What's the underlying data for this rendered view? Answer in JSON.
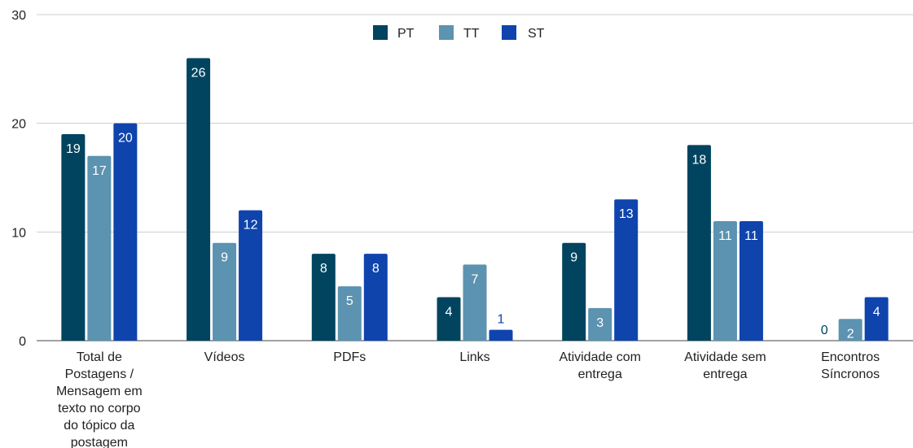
{
  "chart_data": {
    "type": "bar",
    "title": "",
    "xlabel": "",
    "ylabel": "",
    "ylim": [
      0,
      30
    ],
    "yticks": [
      0,
      10,
      20,
      30
    ],
    "grid": true,
    "legend_position": "top-center",
    "categories": [
      [
        "Total de",
        "Postagens /",
        "Mensagem em",
        "texto no corpo",
        "do tópico da",
        "postagem"
      ],
      [
        "Vídeos"
      ],
      [
        "PDFs"
      ],
      [
        "Links"
      ],
      [
        "Atividade com",
        "entrega"
      ],
      [
        "Atividade sem",
        "entrega"
      ],
      [
        "Encontros",
        "Síncronos"
      ]
    ],
    "series": [
      {
        "name": "PT",
        "color": "#00445f",
        "values": [
          19,
          26,
          8,
          4,
          9,
          18,
          0
        ]
      },
      {
        "name": "TT",
        "color": "#5b93b0",
        "values": [
          17,
          9,
          5,
          7,
          3,
          11,
          2
        ]
      },
      {
        "name": "ST",
        "color": "#0f44ad",
        "values": [
          20,
          12,
          8,
          1,
          13,
          11,
          4
        ]
      }
    ]
  }
}
